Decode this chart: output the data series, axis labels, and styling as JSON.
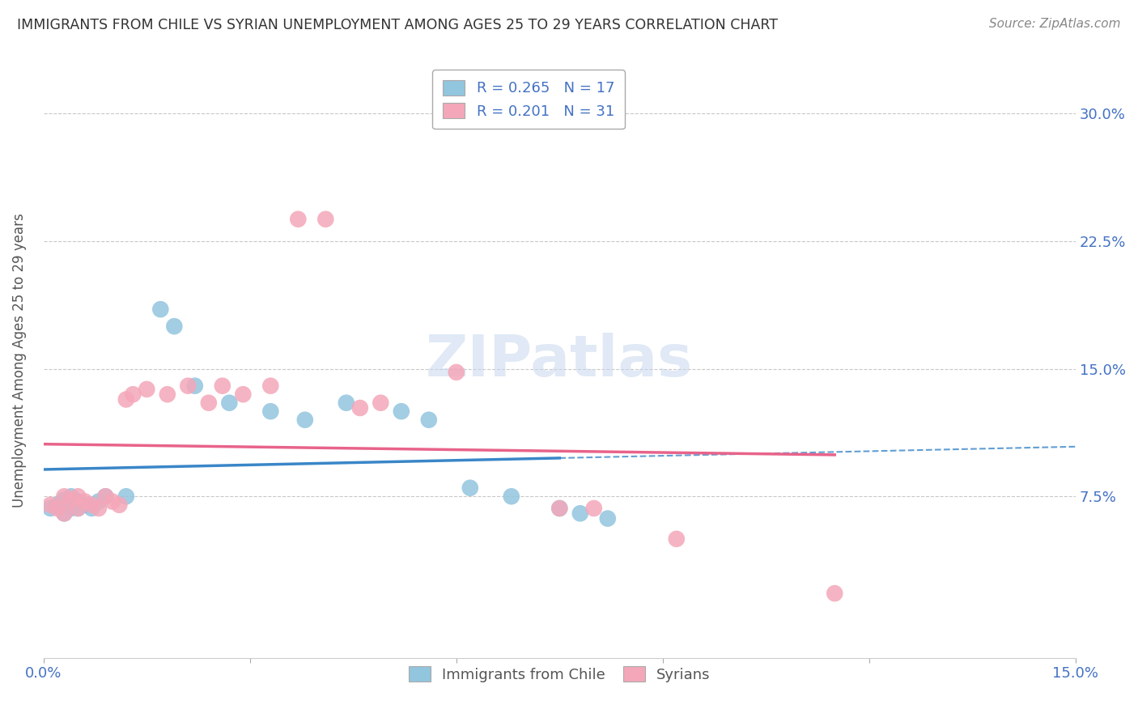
{
  "title": "IMMIGRANTS FROM CHILE VS SYRIAN UNEMPLOYMENT AMONG AGES 25 TO 29 YEARS CORRELATION CHART",
  "source": "Source: ZipAtlas.com",
  "ylabel": "Unemployment Among Ages 25 to 29 years",
  "xlim": [
    0.0,
    0.15
  ],
  "ylim": [
    -0.02,
    0.33
  ],
  "xtick_positions": [
    0.0,
    0.03,
    0.06,
    0.09,
    0.12,
    0.15
  ],
  "xticklabels": [
    "0.0%",
    "",
    "",
    "",
    "",
    "15.0%"
  ],
  "ytick_positions": [
    0.075,
    0.15,
    0.225,
    0.3
  ],
  "yticklabels": [
    "7.5%",
    "15.0%",
    "22.5%",
    "30.0%"
  ],
  "blue_color": "#92c5de",
  "pink_color": "#f4a7b9",
  "blue_line_color": "#3a86c8",
  "pink_line_color": "#e8638a",
  "blue_scatter_x": [
    0.001,
    0.002,
    0.003,
    0.003,
    0.004,
    0.004,
    0.005,
    0.005,
    0.006,
    0.007,
    0.008,
    0.009,
    0.012,
    0.017,
    0.019,
    0.022,
    0.027,
    0.033,
    0.038,
    0.044,
    0.052,
    0.056,
    0.062,
    0.068,
    0.075,
    0.078,
    0.082
  ],
  "blue_scatter_y": [
    0.068,
    0.07,
    0.065,
    0.073,
    0.068,
    0.075,
    0.072,
    0.068,
    0.07,
    0.068,
    0.072,
    0.075,
    0.075,
    0.185,
    0.175,
    0.14,
    0.13,
    0.125,
    0.12,
    0.13,
    0.125,
    0.12,
    0.08,
    0.075,
    0.068,
    0.065,
    0.062
  ],
  "pink_scatter_x": [
    0.001,
    0.002,
    0.003,
    0.003,
    0.004,
    0.005,
    0.005,
    0.006,
    0.007,
    0.008,
    0.009,
    0.01,
    0.011,
    0.012,
    0.013,
    0.015,
    0.018,
    0.021,
    0.024,
    0.026,
    0.029,
    0.033,
    0.037,
    0.041,
    0.046,
    0.049,
    0.06,
    0.075,
    0.08,
    0.092,
    0.115
  ],
  "pink_scatter_y": [
    0.07,
    0.068,
    0.065,
    0.075,
    0.073,
    0.068,
    0.075,
    0.072,
    0.07,
    0.068,
    0.075,
    0.072,
    0.07,
    0.132,
    0.135,
    0.138,
    0.135,
    0.14,
    0.13,
    0.14,
    0.135,
    0.14,
    0.238,
    0.238,
    0.127,
    0.13,
    0.148,
    0.068,
    0.068,
    0.05,
    0.018
  ],
  "watermark": "ZIPatlas",
  "background_color": "#ffffff",
  "grid_color": "#c8c8c8"
}
